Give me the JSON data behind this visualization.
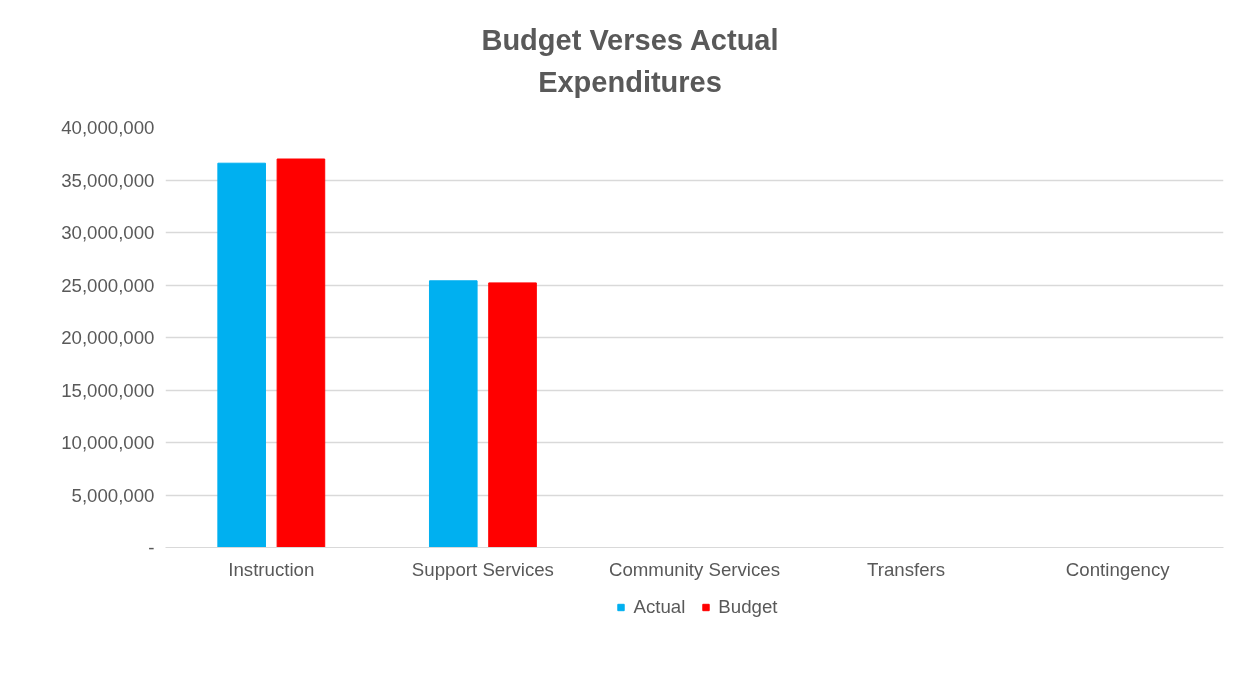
{
  "chart_data": {
    "type": "bar",
    "title": "Budget Verses Actual Expenditures",
    "categories": [
      "Instruction",
      "Support Services",
      "Community Services",
      "Transfers",
      "Contingency"
    ],
    "series": [
      {
        "name": "Actual",
        "color": "#00b0f0",
        "values": [
          36600000,
          25400000,
          0,
          0,
          0
        ]
      },
      {
        "name": "Budget",
        "color": "#ff0000",
        "values": [
          37000000,
          25200000,
          0,
          0,
          0
        ]
      }
    ],
    "ylim": [
      0,
      40000000
    ],
    "yticks": [
      {
        "value": 0,
        "label": "-"
      },
      {
        "value": 5000000,
        "label": "5,000,000"
      },
      {
        "value": 10000000,
        "label": "10,000,000"
      },
      {
        "value": 15000000,
        "label": "15,000,000"
      },
      {
        "value": 20000000,
        "label": "20,000,000"
      },
      {
        "value": 25000000,
        "label": "25,000,000"
      },
      {
        "value": 30000000,
        "label": "30,000,000"
      },
      {
        "value": 35000000,
        "label": "35,000,000"
      },
      {
        "value": 40000000,
        "label": "40,000,000"
      }
    ],
    "grid": "y",
    "legend": "bottom"
  }
}
